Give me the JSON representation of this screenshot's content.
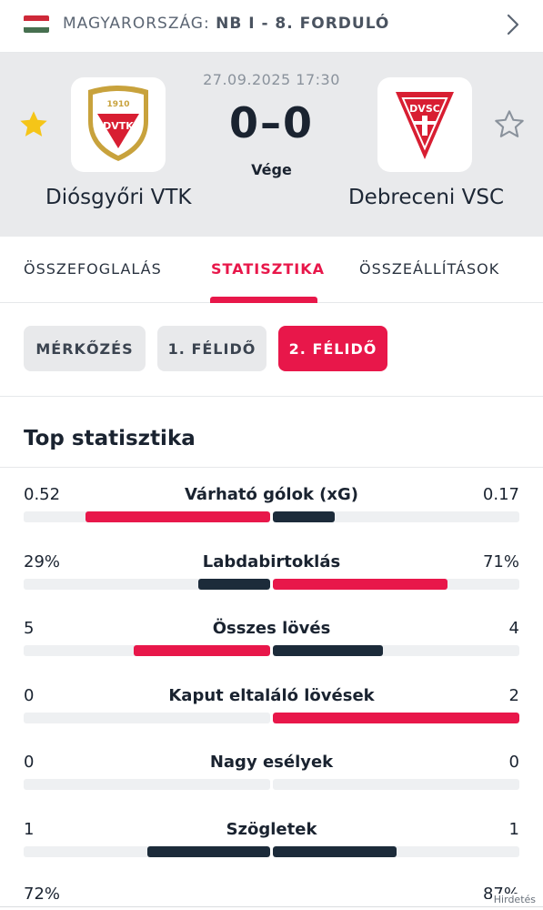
{
  "breadcrumb": {
    "country": "MAGYARORSZÁG:",
    "competition": "NB I - 8. FORDULÓ"
  },
  "match": {
    "datetime": "27.09.2025 17:30",
    "score": "0–0",
    "status": "Vége",
    "home": {
      "name": "Diósgyőri VTK",
      "logo_text": "DVTK",
      "logo_year": "1910",
      "favorite": true
    },
    "away": {
      "name": "Debreceni VSC",
      "logo_text": "DVSC",
      "favorite": false
    }
  },
  "tabs": [
    {
      "label": "ÖSSZEFOGLALÁS",
      "active": false
    },
    {
      "label": "STATISZTIKA",
      "active": true
    },
    {
      "label": "ÖSSZEÁLLÍTÁSOK",
      "active": false
    }
  ],
  "periods": [
    {
      "label": "MÉRKŐZÉS",
      "active": false
    },
    {
      "label": "1. FÉLIDŐ",
      "active": false
    },
    {
      "label": "2. FÉLIDŐ",
      "active": true
    }
  ],
  "stats_title": "Top statisztika",
  "stats": [
    {
      "name": "Várható gólok (xG)",
      "home": "0.52",
      "away": "0.17",
      "home_fill": 0.75,
      "away_fill": 0.25,
      "home_color": "#e8174a",
      "away_color": "#1c2b3a"
    },
    {
      "name": "Labdabirtoklás",
      "home": "29%",
      "away": "71%",
      "home_fill": 0.29,
      "away_fill": 0.71,
      "home_color": "#1c2b3a",
      "away_color": "#e8174a"
    },
    {
      "name": "Összes lövés",
      "home": "5",
      "away": "4",
      "home_fill": 0.555,
      "away_fill": 0.445,
      "home_color": "#e8174a",
      "away_color": "#1c2b3a"
    },
    {
      "name": "Kaput eltaláló lövések",
      "home": "0",
      "away": "2",
      "home_fill": 0,
      "away_fill": 1,
      "home_color": "#1c2b3a",
      "away_color": "#e8174a"
    },
    {
      "name": "Nagy esélyek",
      "home": "0",
      "away": "0",
      "home_fill": 0,
      "away_fill": 0,
      "home_color": "#1c2b3a",
      "away_color": "#1c2b3a"
    },
    {
      "name": "Szögletek",
      "home": "1",
      "away": "1",
      "home_fill": 0.5,
      "away_fill": 0.5,
      "home_color": "#1c2b3a",
      "away_color": "#1c2b3a"
    }
  ],
  "partial_row": {
    "home": "72%",
    "away": "87%"
  },
  "ad_label": "Hirdetés",
  "colors": {
    "accent": "#e8174a",
    "dark": "#1c2b3a",
    "header_bg": "#e9eaec",
    "star_active": "#f5c518"
  }
}
